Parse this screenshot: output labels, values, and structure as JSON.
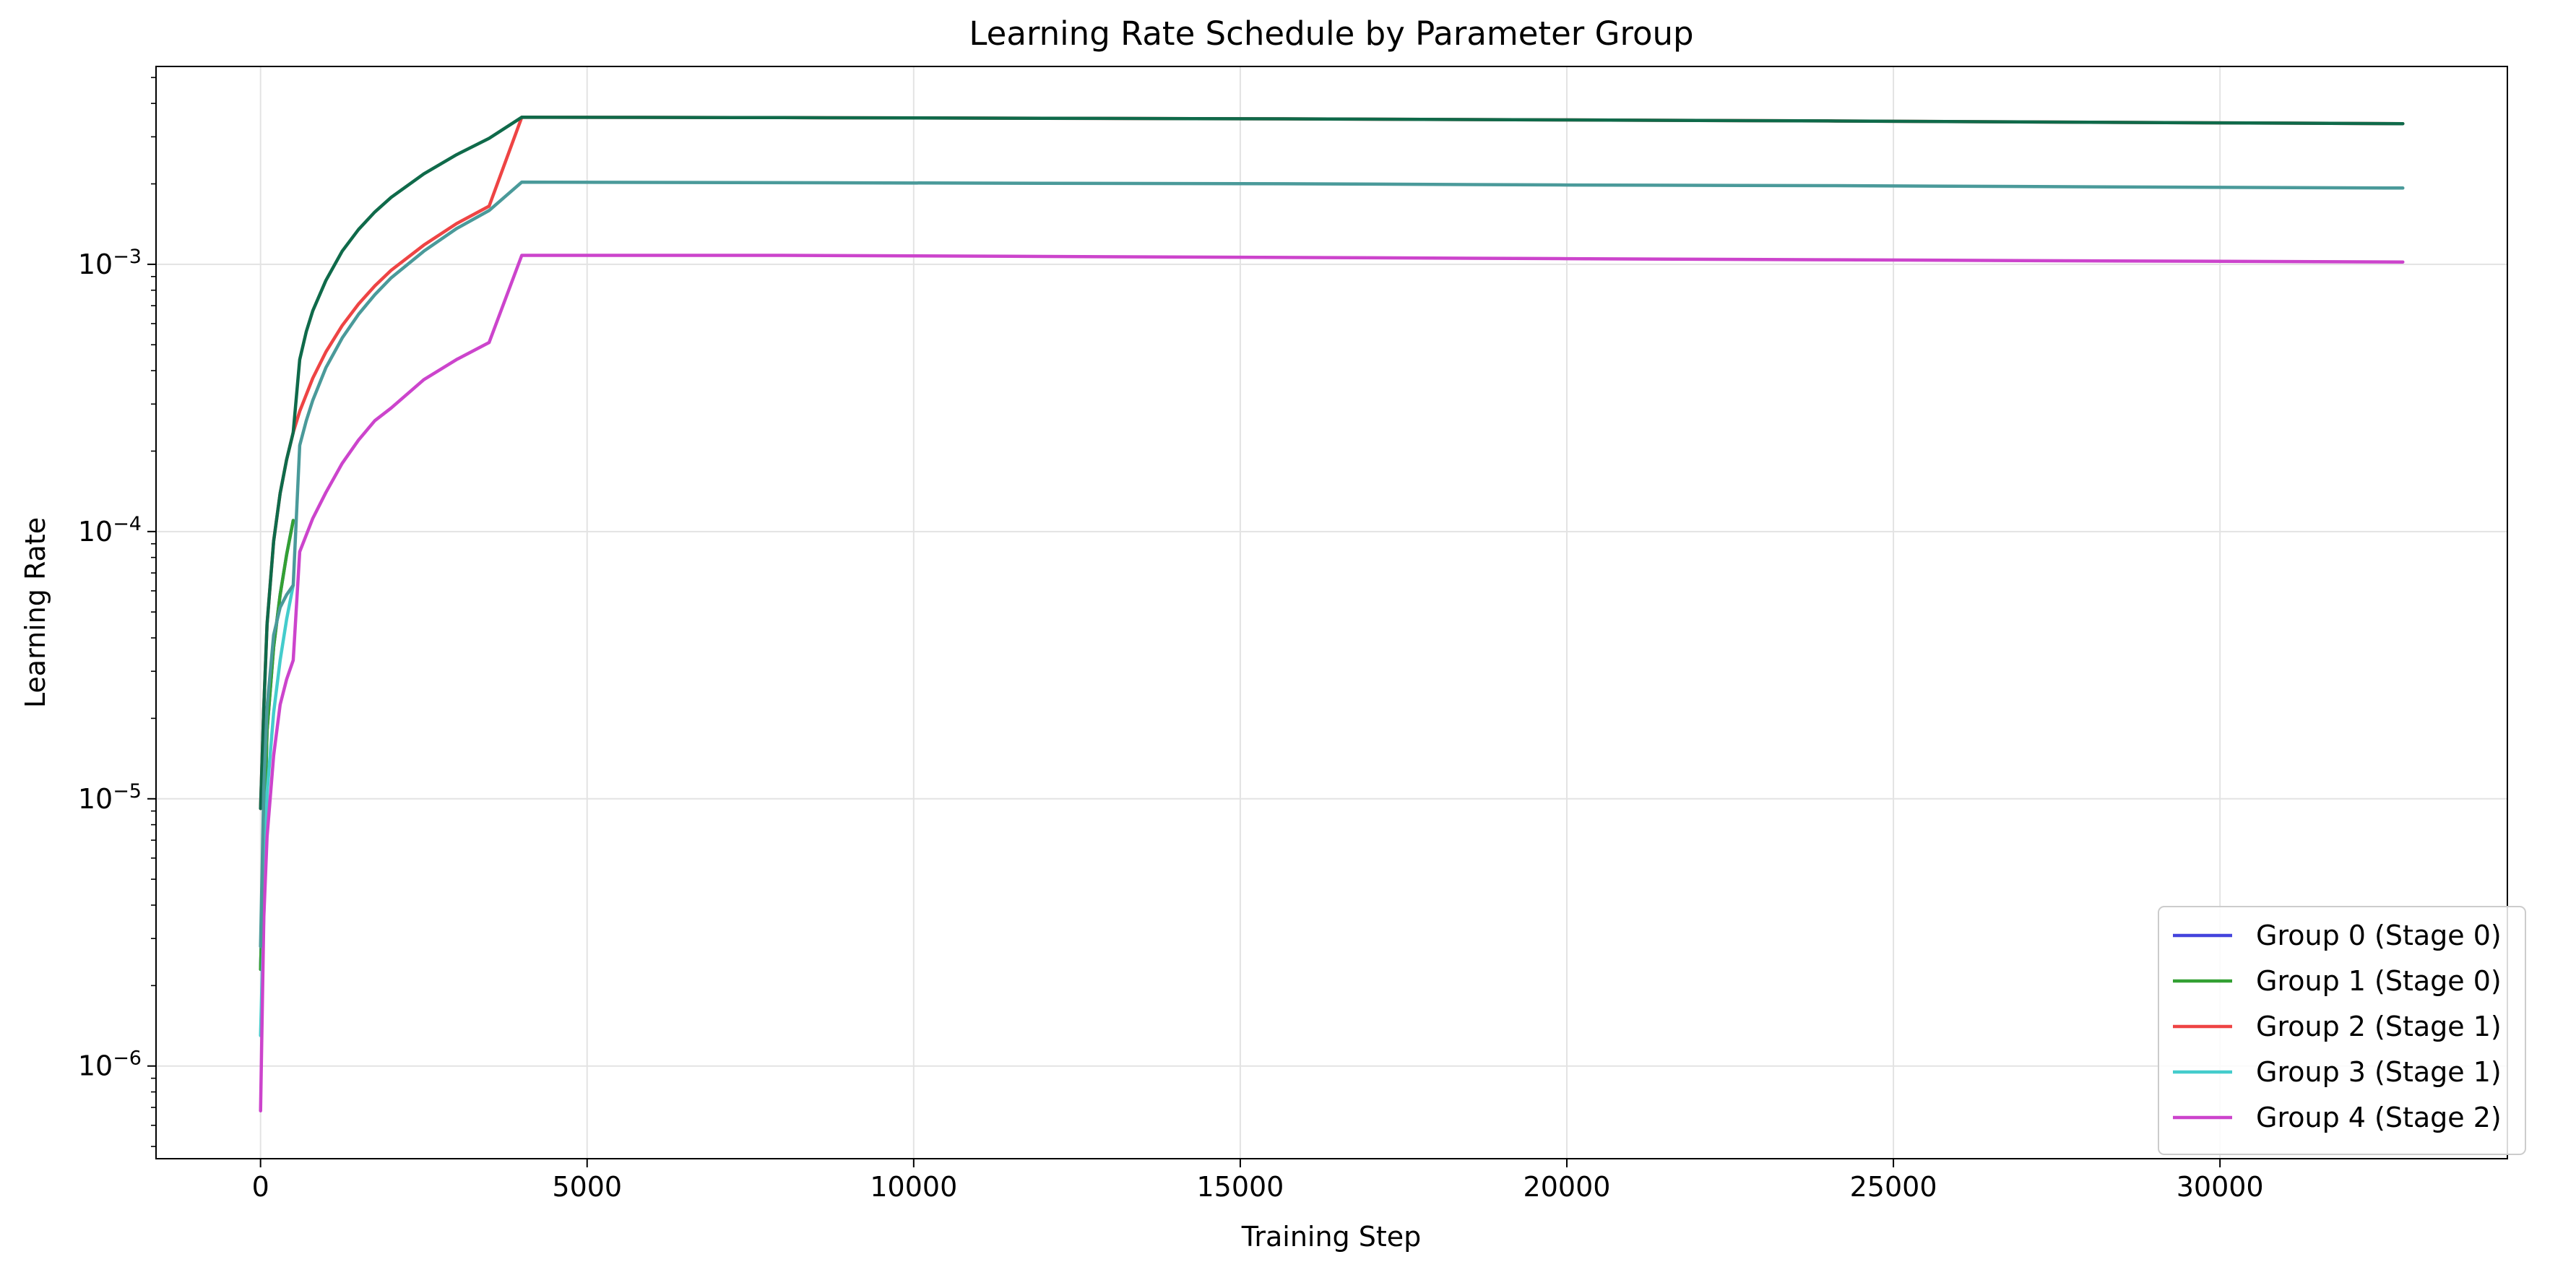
{
  "chart_data": {
    "type": "line",
    "title": "Learning Rate Schedule by Parameter Group",
    "xlabel": "Training Step",
    "ylabel": "Learning Rate",
    "yscale": "log",
    "xlim": [
      -1600,
      34400
    ],
    "ylim": [
      4.5e-07,
      0.0055
    ],
    "x_ticks": [
      0,
      5000,
      10000,
      15000,
      20000,
      25000,
      30000
    ],
    "x_tick_labels": [
      "0",
      "5000",
      "10000",
      "15000",
      "20000",
      "25000",
      "30000"
    ],
    "y_ticks": [
      1e-06,
      1e-05,
      0.0001,
      0.001
    ],
    "y_tick_labels": [
      {
        "base": "10",
        "exp": "−6"
      },
      {
        "base": "10",
        "exp": "−5"
      },
      {
        "base": "10",
        "exp": "−4"
      },
      {
        "base": "10",
        "exp": "−3"
      }
    ],
    "grid": true,
    "legend_position": "lower-right",
    "series": [
      {
        "name": "Group 0 (Stage 0)",
        "color": "#4444dd",
        "x": [
          0,
          100,
          200,
          300,
          400,
          500
        ],
        "y": [
          2.3e-06,
          1.8e-05,
          3.7e-05,
          5.8e-05,
          8.2e-05,
          0.00011
        ]
      },
      {
        "name": "Group 1 (Stage 0)",
        "color": "#33a033",
        "x": [
          0,
          100,
          200,
          300,
          400,
          500
        ],
        "y": [
          2.3e-06,
          1.8e-05,
          3.7e-05,
          5.8e-05,
          8.2e-05,
          0.00011
        ]
      },
      {
        "name": "Group 2 (Stage 1)",
        "color": "#ee4444",
        "x": [
          0,
          50,
          100,
          200,
          300,
          400,
          500,
          600,
          800,
          1000,
          1250,
          1500,
          1750,
          2000,
          2500,
          3000,
          3500,
          4000,
          8000,
          12000,
          16000,
          20000,
          24000,
          28000,
          32800
        ],
        "y": [
          9.2e-06,
          2.2e-05,
          4.5e-05,
          9.2e-05,
          0.000139,
          0.000186,
          0.000235,
          0.000282,
          0.000375,
          0.00047,
          0.00059,
          0.00071,
          0.00083,
          0.00095,
          0.00118,
          0.00142,
          0.00165,
          0.00355,
          0.00354,
          0.00352,
          0.0035,
          0.00347,
          0.00344,
          0.0034,
          0.00336
        ]
      },
      {
        "name": "Group 3 (Stage 1)",
        "color": "#44cccc",
        "x": [
          0,
          100,
          200,
          300,
          400,
          500
        ],
        "y": [
          1.3e-06,
          1.05e-05,
          2.1e-05,
          3.3e-05,
          4.7e-05,
          6.3e-05
        ]
      },
      {
        "name": "Group 4 (Stage 2)",
        "color": "#cc44cc",
        "x": [
          0,
          50,
          100,
          200,
          300,
          400,
          500,
          600,
          800,
          1000,
          1250,
          1500,
          1750,
          2000,
          2500,
          3000,
          3500,
          4000,
          8000,
          12000,
          16000,
          20000,
          24000,
          28000,
          32800
        ],
        "y": [
          6.8e-07,
          3.6e-06,
          7.2e-06,
          1.45e-05,
          2.25e-05,
          2.8e-05,
          3.3e-05,
          8.4e-05,
          0.000112,
          0.00014,
          0.00018,
          0.00022,
          0.00026,
          0.00029,
          0.00037,
          0.00044,
          0.00051,
          0.00108,
          0.00108,
          0.00107,
          0.00106,
          0.00105,
          0.00104,
          0.00103,
          0.00102
        ]
      },
      {
        "color": "#0f6a4a",
        "x": [
          0,
          50,
          100,
          200,
          300,
          400,
          500,
          600,
          700,
          800,
          1000,
          1250,
          1500,
          1750,
          2000,
          2500,
          3000,
          3500,
          4000,
          8000,
          12000,
          16000,
          20000,
          24000,
          28000,
          32800
        ],
        "y": [
          9.2e-06,
          2.2e-05,
          4.5e-05,
          9.2e-05,
          0.000139,
          0.000186,
          0.000235,
          0.00044,
          0.00056,
          0.00067,
          0.00087,
          0.00112,
          0.00135,
          0.00157,
          0.00178,
          0.00218,
          0.00257,
          0.00296,
          0.00355,
          0.00354,
          0.00352,
          0.0035,
          0.00347,
          0.00344,
          0.0034,
          0.00336
        ]
      },
      {
        "color": "#4a9a9a",
        "x": [
          0,
          50,
          100,
          200,
          300,
          400,
          500,
          600,
          700,
          800,
          1000,
          1250,
          1500,
          1750,
          2000,
          2500,
          3000,
          3500,
          4000,
          8000,
          12000,
          16000,
          20000,
          24000,
          28000,
          32800
        ],
        "y": [
          2.8e-06,
          1.1e-05,
          2.2e-05,
          4.1e-05,
          5.2e-05,
          5.8e-05,
          6.3e-05,
          0.00021,
          0.00026,
          0.00031,
          0.00041,
          0.00053,
          0.00065,
          0.00077,
          0.00089,
          0.00112,
          0.00136,
          0.00159,
          0.00203,
          0.00202,
          0.00201,
          0.002,
          0.00198,
          0.00197,
          0.00195,
          0.00193
        ]
      }
    ]
  }
}
